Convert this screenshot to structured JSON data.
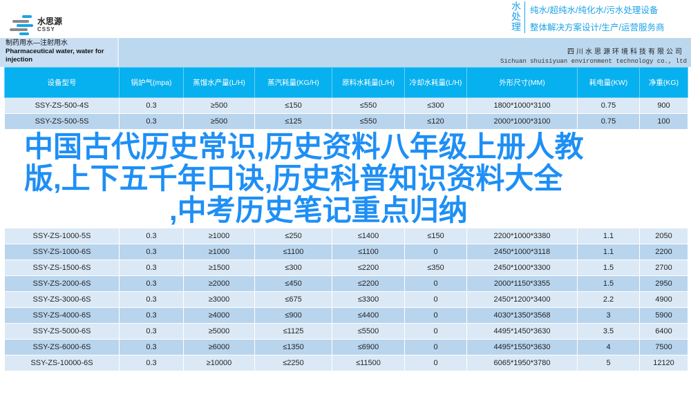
{
  "logo": {
    "cn": "水思源",
    "en": "CSSY"
  },
  "slogan": {
    "vertical": "水处理",
    "line1": "纯水/超纯水/纯化水/污水处理设备",
    "line2": "整体解决方案设计/生产/运营服务商"
  },
  "title": {
    "cn": "制药用水—注射用水",
    "en": "Pharmaceutical water, water for injection"
  },
  "company": {
    "cn": "四川水思源环境科技有限公司",
    "en": "Sichuan shuisiyuan environment technology co., ltd"
  },
  "headers": [
    "设备型号",
    "锅炉气(mpa)",
    "蒸馏水产量(L/H)",
    "蒸汽耗量(KG/H)",
    "原料水耗量(L/H)",
    "冷却水耗量(L/H)",
    "外形尺寸(MM)",
    "耗电量(KW)",
    "净重(KG)"
  ],
  "rows": [
    [
      "SSY-ZS-500-4S",
      "0.3",
      "≥500",
      "≤150",
      "≤550",
      "≤300",
      "1800*1000*3100",
      "0.75",
      "900"
    ],
    [
      "SSY-ZS-500-5S",
      "0.3",
      "≥500",
      "≤125",
      "≤550",
      "≤120",
      "2000*1000*3100",
      "0.75",
      "100"
    ],
    [
      "SSY-ZS-1000-5S",
      "0.3",
      "≥1000",
      "≤250",
      "≤1400",
      "≤150",
      "2200*1000*3380",
      "1.1",
      "2050"
    ],
    [
      "SSY-ZS-1000-6S",
      "0.3",
      "≥1000",
      "≤1100",
      "≤1100",
      "0",
      "2450*1000*3118",
      "1.1",
      "2200"
    ],
    [
      "SSY-ZS-1500-6S",
      "0.3",
      "≥1500",
      "≤300",
      "≤2200",
      "≤350",
      "2450*1000*3300",
      "1.5",
      "2700"
    ],
    [
      "SSY-ZS-2000-6S",
      "0.3",
      "≥2000",
      "≤450",
      "≤2200",
      "0",
      "2000*1150*3355",
      "1.5",
      "2950"
    ],
    [
      "SSY-ZS-3000-6S",
      "0.3",
      "≥3000",
      "≤675",
      "≤3300",
      "0",
      "2450*1200*3400",
      "2.2",
      "4900"
    ],
    [
      "SSY-ZS-4000-6S",
      "0.3",
      "≥4000",
      "≤900",
      "≤4400",
      "0",
      "4030*1350*3568",
      "3",
      "5900"
    ],
    [
      "SSY-ZS-5000-6S",
      "0.3",
      "≥5000",
      "≤1125",
      "≤5500",
      "0",
      "4495*1450*3630",
      "3.5",
      "6400"
    ],
    [
      "SSY-ZS-6000-6S",
      "0.3",
      "≥6000",
      "≤1350",
      "≤6900",
      "0",
      "4495*1550*3630",
      "4",
      "7500"
    ],
    [
      "SSY-ZS-10000-6S",
      "0.3",
      "≥10000",
      "≤2250",
      "≤11500",
      "0",
      "6065*1950*3780",
      "5",
      "12120"
    ]
  ],
  "overlay": [
    "中国古代历史常识,历史资料八年级上册人教",
    "版,上下五千年口诀,历史科普知识资料大全",
    ",中考历史笔记重点归纳"
  ],
  "colors": {
    "header": "#07b0ef",
    "overlay": "#1e8ff5",
    "row_light": "#dbe9f6",
    "row_dark": "#b9d5ee"
  }
}
